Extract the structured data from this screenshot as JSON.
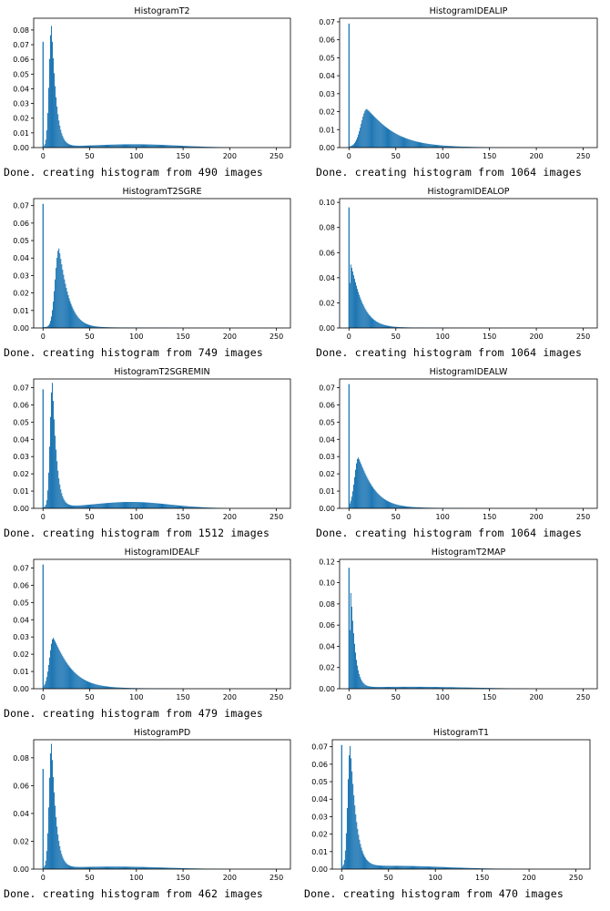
{
  "chart_data": [
    {
      "type": "bar",
      "title": "HistogramT2",
      "caption": "Done. creating histogram from 490 images",
      "ylim": [
        0,
        0.088
      ],
      "yticks": [
        0.0,
        0.01,
        0.02,
        0.03,
        0.04,
        0.05,
        0.06,
        0.07,
        0.08
      ],
      "xlim": [
        -10,
        265
      ],
      "xticks": [
        0,
        50,
        100,
        150,
        200,
        250
      ],
      "spike": {
        "x": 0,
        "value": 0.072
      },
      "peak": {
        "x": 9,
        "value": 0.082
      },
      "rise": 2.5,
      "fall": 5.5,
      "second_bump": {
        "x": 100,
        "value": 0.002,
        "width": 45
      },
      "tail": 0.0005,
      "max_x": 200
    },
    {
      "type": "bar",
      "title": "HistogramIDEALIP",
      "caption": "Done. creating histogram from 1064 images",
      "ylim": [
        0,
        0.072
      ],
      "yticks": [
        0.0,
        0.01,
        0.02,
        0.03,
        0.04,
        0.05,
        0.06,
        0.07
      ],
      "xlim": [
        -10,
        265
      ],
      "xticks": [
        0,
        50,
        100,
        150,
        200,
        250
      ],
      "spike": {
        "x": 0,
        "value": 0.069
      },
      "peak": {
        "x": 19,
        "value": 0.021
      },
      "rise": 6,
      "fall": 30,
      "second_bump": null,
      "tail": 0.0005,
      "max_x": 200
    },
    {
      "type": "bar",
      "title": "HistogramT2SGRE",
      "caption": "Done. creating histogram from 749 images",
      "ylim": [
        0,
        0.074
      ],
      "yticks": [
        0.0,
        0.01,
        0.02,
        0.03,
        0.04,
        0.05,
        0.06,
        0.07
      ],
      "xlim": [
        -10,
        265
      ],
      "xticks": [
        0,
        50,
        100,
        150,
        200,
        250
      ],
      "spike": {
        "x": 0,
        "value": 0.071
      },
      "peak": {
        "x": 17,
        "value": 0.045
      },
      "rise": 4,
      "fall": 11,
      "second_bump": null,
      "tail": 0.0005,
      "max_x": 175
    },
    {
      "type": "bar",
      "title": "HistogramIDEALOP",
      "caption": "Done. creating histogram from 1064 images",
      "ylim": [
        0,
        0.103
      ],
      "yticks": [
        0.0,
        0.02,
        0.04,
        0.06,
        0.08,
        0.1
      ],
      "xlim": [
        -10,
        265
      ],
      "xticks": [
        0,
        50,
        100,
        150,
        200,
        250
      ],
      "spike": {
        "x": 0,
        "value": 0.096
      },
      "peak": {
        "x": 2,
        "value": 0.05
      },
      "rise": 1.2,
      "fall": 13,
      "second_bump": null,
      "tail": 0.0005,
      "max_x": 160
    },
    {
      "type": "bar",
      "title": "HistogramT2SGREMIN",
      "caption": "Done. creating histogram from 1512 images",
      "ylim": [
        0,
        0.075
      ],
      "yticks": [
        0.0,
        0.01,
        0.02,
        0.03,
        0.04,
        0.05,
        0.06,
        0.07
      ],
      "xlim": [
        -10,
        265
      ],
      "xticks": [
        0,
        50,
        100,
        150,
        200,
        250
      ],
      "spike": {
        "x": 0,
        "value": 0.069
      },
      "peak": {
        "x": 10,
        "value": 0.072
      },
      "rise": 2.5,
      "fall": 5,
      "second_bump": {
        "x": 95,
        "value": 0.0035,
        "width": 40
      },
      "tail": 0.0004,
      "max_x": 195
    },
    {
      "type": "bar",
      "title": "HistogramIDEALW",
      "caption": "Done. creating histogram from 1064 images",
      "ylim": [
        0,
        0.075
      ],
      "yticks": [
        0.0,
        0.01,
        0.02,
        0.03,
        0.04,
        0.05,
        0.06,
        0.07
      ],
      "xlim": [
        -10,
        265
      ],
      "xticks": [
        0,
        50,
        100,
        150,
        200,
        250
      ],
      "spike": {
        "x": 0,
        "value": 0.072
      },
      "peak": {
        "x": 10,
        "value": 0.029
      },
      "rise": 4,
      "fall": 17,
      "second_bump": null,
      "tail": 0.0005,
      "max_x": 170
    },
    {
      "type": "bar",
      "title": "HistogramIDEALF",
      "caption": "Done. creating histogram from 479 images",
      "ylim": [
        0,
        0.075
      ],
      "yticks": [
        0.0,
        0.01,
        0.02,
        0.03,
        0.04,
        0.05,
        0.06,
        0.07
      ],
      "xlim": [
        -10,
        265
      ],
      "xticks": [
        0,
        50,
        100,
        150,
        200,
        250
      ],
      "spike": {
        "x": 0,
        "value": 0.072
      },
      "peak": {
        "x": 11,
        "value": 0.029
      },
      "rise": 4,
      "fall": 20,
      "second_bump": null,
      "tail": 0.0005,
      "max_x": 195
    },
    {
      "type": "bar",
      "title": "HistogramT2MAP",
      "caption": "",
      "ylim": [
        0,
        0.122
      ],
      "yticks": [
        0.0,
        0.02,
        0.04,
        0.06,
        0.08,
        0.1,
        0.12
      ],
      "xlim": [
        -10,
        265
      ],
      "xticks": [
        0,
        50,
        100,
        150,
        200,
        250
      ],
      "spike": {
        "x": 0,
        "value": 0.114
      },
      "peak": {
        "x": 2,
        "value": 0.089
      },
      "rise": 1,
      "fall": 5,
      "second_bump": {
        "x": 70,
        "value": 0.0015,
        "width": 60
      },
      "tail": 0.0005,
      "max_x": 190
    },
    {
      "type": "bar",
      "title": "HistogramPD",
      "caption": "Done. creating histogram from 462 images",
      "ylim": [
        0,
        0.093
      ],
      "yticks": [
        0.0,
        0.02,
        0.04,
        0.06,
        0.08
      ],
      "xlim": [
        -10,
        265
      ],
      "xticks": [
        0,
        50,
        100,
        150,
        200,
        250
      ],
      "spike": {
        "x": 0,
        "value": 0.072
      },
      "peak": {
        "x": 9,
        "value": 0.089
      },
      "rise": 2.5,
      "fall": 5.5,
      "second_bump": {
        "x": 80,
        "value": 0.0015,
        "width": 50
      },
      "tail": 0.0005,
      "max_x": 200
    },
    {
      "type": "bar",
      "title": "HistogramT1",
      "caption": "Done. creating histogram from 470 images",
      "ylim": [
        0,
        0.074
      ],
      "yticks": [
        0.0,
        0.01,
        0.02,
        0.03,
        0.04,
        0.05,
        0.06,
        0.07
      ],
      "xlim": [
        -10,
        265
      ],
      "xticks": [
        0,
        50,
        100,
        150,
        200,
        250
      ],
      "spike": {
        "x": 0,
        "value": 0.071
      },
      "peak": {
        "x": 9,
        "value": 0.069
      },
      "rise": 2.5,
      "fall": 7,
      "second_bump": {
        "x": 60,
        "value": 0.0015,
        "width": 50
      },
      "tail": 0.0005,
      "max_x": 210
    }
  ]
}
